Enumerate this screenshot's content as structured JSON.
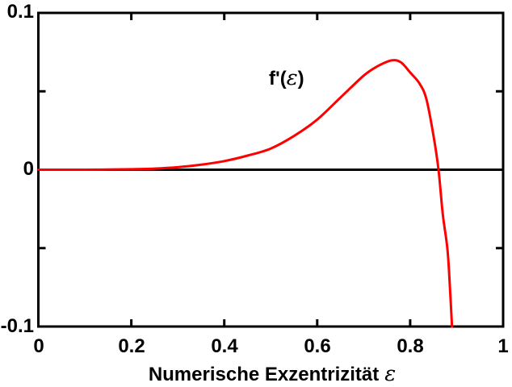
{
  "labels": {
    "curve_prefix": "f'(",
    "curve_epsilon": "ε",
    "curve_suffix": ")",
    "xlabel_text": "Numerische Exzentrizität",
    "xlabel_epsilon": "ε"
  },
  "colors": {
    "curve": "#ff0000",
    "axis": "#000000",
    "background": "#ffffff"
  },
  "chart_data": {
    "type": "line",
    "title": "",
    "xlabel": "Numerische Exzentrizität ε",
    "ylabel": "",
    "xlim": [
      0,
      1
    ],
    "ylim": [
      -0.1,
      0.1
    ],
    "grid": false,
    "legend": "none",
    "zero_line": true,
    "annotation": "f'(ε)",
    "x_ticks": [
      0,
      0.2,
      0.4,
      0.6,
      0.8,
      1
    ],
    "x_tick_labels": [
      "0",
      "0.2",
      "0.4",
      "0.6",
      "0.8",
      "1"
    ],
    "y_ticks_major": [
      {
        "value": 0.1,
        "label": "0.1"
      },
      {
        "value": 0,
        "label": "0"
      },
      {
        "value": -0.1,
        "label": "-0.1"
      }
    ],
    "y_ticks_minor": [
      0.05,
      -0.05
    ],
    "series": [
      {
        "name": "f'(ε)",
        "color": "#ff0000",
        "points": [
          [
            0.0,
            0.0
          ],
          [
            0.05,
            0.0
          ],
          [
            0.1,
            0.0
          ],
          [
            0.15,
            0.0001
          ],
          [
            0.2,
            0.0003
          ],
          [
            0.25,
            0.0007
          ],
          [
            0.3,
            0.0016
          ],
          [
            0.35,
            0.0032
          ],
          [
            0.4,
            0.0055
          ],
          [
            0.45,
            0.009
          ],
          [
            0.5,
            0.0135
          ],
          [
            0.55,
            0.0215
          ],
          [
            0.6,
            0.032
          ],
          [
            0.65,
            0.046
          ],
          [
            0.7,
            0.06
          ],
          [
            0.73,
            0.066
          ],
          [
            0.76,
            0.0697
          ],
          [
            0.78,
            0.0685
          ],
          [
            0.8,
            0.062
          ],
          [
            0.82,
            0.055
          ],
          [
            0.835,
            0.045
          ],
          [
            0.85,
            0.022
          ],
          [
            0.861,
            0.0
          ],
          [
            0.87,
            -0.028
          ],
          [
            0.88,
            -0.05
          ],
          [
            0.885,
            -0.072
          ],
          [
            0.89,
            -0.1
          ]
        ]
      }
    ]
  }
}
